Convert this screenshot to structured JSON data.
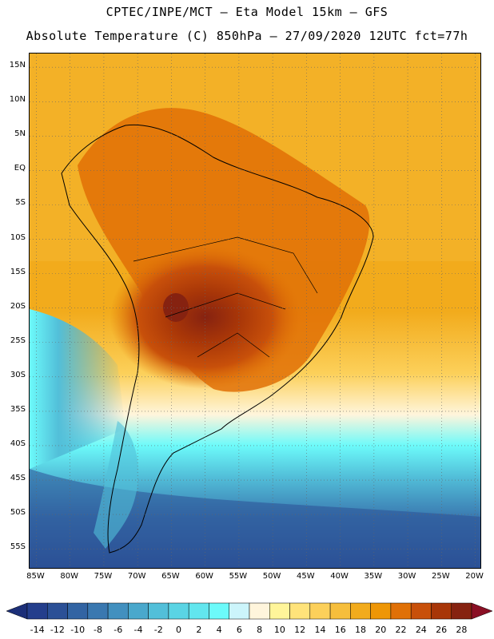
{
  "header": {
    "title_line1": "CPTEC/INPE/MCT –  Eta Model 15km – GFS",
    "title_line2": "Absolute Temperature (C) 850hPa – 27/09/2020 12UTC fct=77h"
  },
  "map": {
    "variable": "Absolute Temperature (C)",
    "level": "850hPa",
    "model": "Eta Model 15km",
    "lat_labels": [
      "15N",
      "10N",
      "5N",
      "EQ",
      "5S",
      "10S",
      "15S",
      "20S",
      "25S",
      "30S",
      "35S",
      "40S",
      "45S",
      "50S",
      "55S"
    ],
    "lat_values": [
      15,
      10,
      5,
      0,
      -5,
      -10,
      -15,
      -20,
      -25,
      -30,
      -35,
      -40,
      -45,
      -50,
      -55
    ],
    "lon_labels": [
      "85W",
      "80W",
      "75W",
      "70W",
      "65W",
      "60W",
      "55W",
      "50W",
      "45W",
      "40W",
      "35W",
      "30W",
      "25W",
      "20W"
    ],
    "lon_values": [
      -85,
      -80,
      -75,
      -70,
      -65,
      -60,
      -55,
      -50,
      -45,
      -40,
      -35,
      -30,
      -25,
      -20
    ],
    "lat_range": [
      -58,
      17
    ],
    "lon_range": [
      -86,
      -19
    ]
  },
  "colorbar": {
    "labels": [
      "-14",
      "-12",
      "-10",
      "-8",
      "-6",
      "-4",
      "-2",
      "0",
      "2",
      "4",
      "6",
      "8",
      "10",
      "12",
      "14",
      "16",
      "18",
      "20",
      "22",
      "24",
      "26",
      "28"
    ],
    "colors": [
      "#243e8c",
      "#2b5096",
      "#3264a3",
      "#3a78b0",
      "#4290bf",
      "#4aa8cc",
      "#52bfd9",
      "#5ad4e4",
      "#62e6ee",
      "#6cfafa",
      "#ccf5fb",
      "#fff5dc",
      "#fff59a",
      "#ffe37a",
      "#fcd05a",
      "#f6be3c",
      "#f2ab1c",
      "#ee9606",
      "#e07006",
      "#c8500a",
      "#a83608",
      "#862210"
    ],
    "low_color": "#1c2f78",
    "high_color": "#8a0f24"
  },
  "colors": {
    "warm_ocean": "#f2ab1c",
    "hot_land": "#c8500a",
    "cold_south": "#3264a3"
  }
}
